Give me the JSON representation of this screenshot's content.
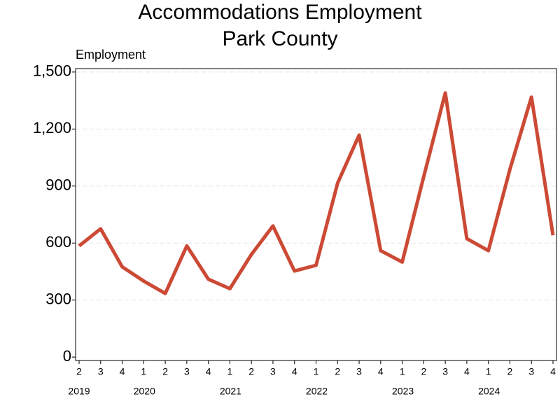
{
  "chart_data": {
    "type": "line",
    "title": "Accommodations Employment",
    "subtitle": "Park County",
    "y_label": "Employment",
    "categories": [
      "2",
      "3",
      "4",
      "1",
      "2",
      "3",
      "4",
      "1",
      "2",
      "3",
      "4",
      "1",
      "2",
      "3",
      "4",
      "1",
      "2",
      "3",
      "4",
      "1",
      "2",
      "3",
      "4"
    ],
    "year_labels": [
      "2019",
      null,
      null,
      "2020",
      null,
      null,
      null,
      "2021",
      null,
      null,
      null,
      "2022",
      null,
      null,
      null,
      "2023",
      null,
      null,
      null,
      "2024",
      null,
      null,
      null
    ],
    "series": [
      {
        "name": "Employment",
        "color": "#cc4a35",
        "values": [
          585,
          675,
          475,
          400,
          335,
          585,
          410,
          360,
          540,
          690,
          453,
          483,
          915,
          1168,
          560,
          500,
          950,
          1390,
          623,
          560,
          988,
          1368,
          641
        ]
      }
    ],
    "ylim": [
      -18,
      1518
    ],
    "yticks": [
      0,
      300,
      600,
      900,
      {
        "value": 1200,
        "label": "1,200"
      },
      {
        "value": 1500,
        "label": "1,500"
      }
    ],
    "grid": true
  }
}
